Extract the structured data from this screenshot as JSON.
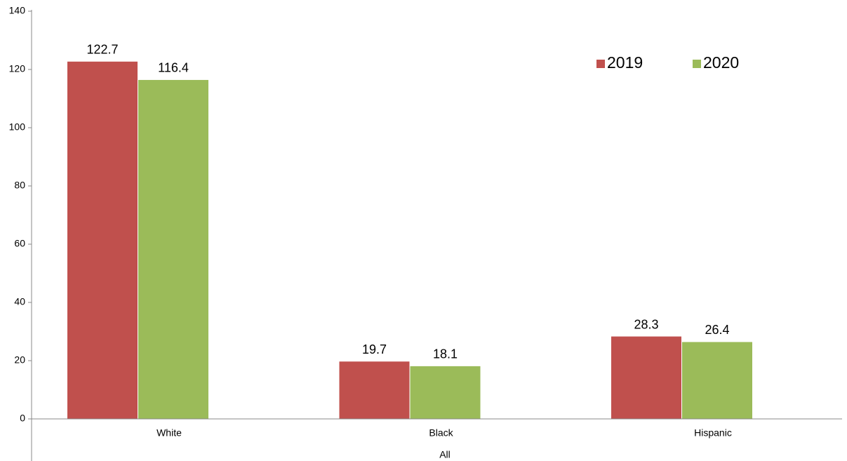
{
  "chart_data": {
    "type": "bar",
    "categories": [
      "White",
      "Black",
      "Hispanic"
    ],
    "xlabel": "All",
    "series": [
      {
        "name": "2019",
        "color": "#c0504d",
        "values": [
          122.7,
          19.7,
          28.3
        ]
      },
      {
        "name": "2020",
        "color": "#9bbb59",
        "values": [
          116.4,
          18.1,
          26.4
        ]
      }
    ],
    "ylim": [
      0,
      140
    ],
    "yticks": [
      0,
      20,
      40,
      60,
      80,
      100,
      120,
      140
    ],
    "legend": "top-right"
  }
}
